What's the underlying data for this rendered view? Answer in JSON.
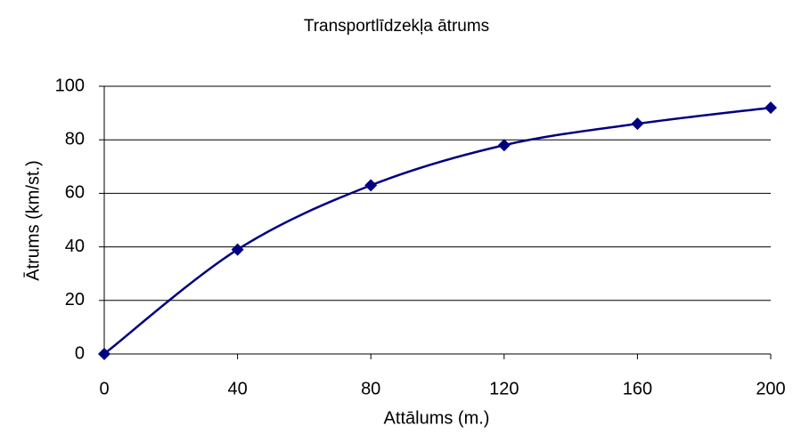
{
  "chart_data": {
    "type": "line",
    "title": "Transportlīdzekļa ātrums",
    "x_label": "Attālums (m.)",
    "y_label": "Ātrums (km/st.)",
    "x": [
      0,
      40,
      80,
      120,
      160,
      200
    ],
    "series": [
      {
        "name": "Ātrums",
        "color": "#000080",
        "values": [
          0,
          39,
          63,
          78,
          86,
          92
        ]
      }
    ],
    "xlim": [
      0,
      200
    ],
    "xticks": [
      0,
      40,
      80,
      120,
      160,
      200
    ],
    "ylim": [
      0,
      100
    ],
    "yticks": [
      0,
      20,
      40,
      60,
      80,
      100
    ],
    "grid": true,
    "smooth": true,
    "marker": "diamond"
  }
}
